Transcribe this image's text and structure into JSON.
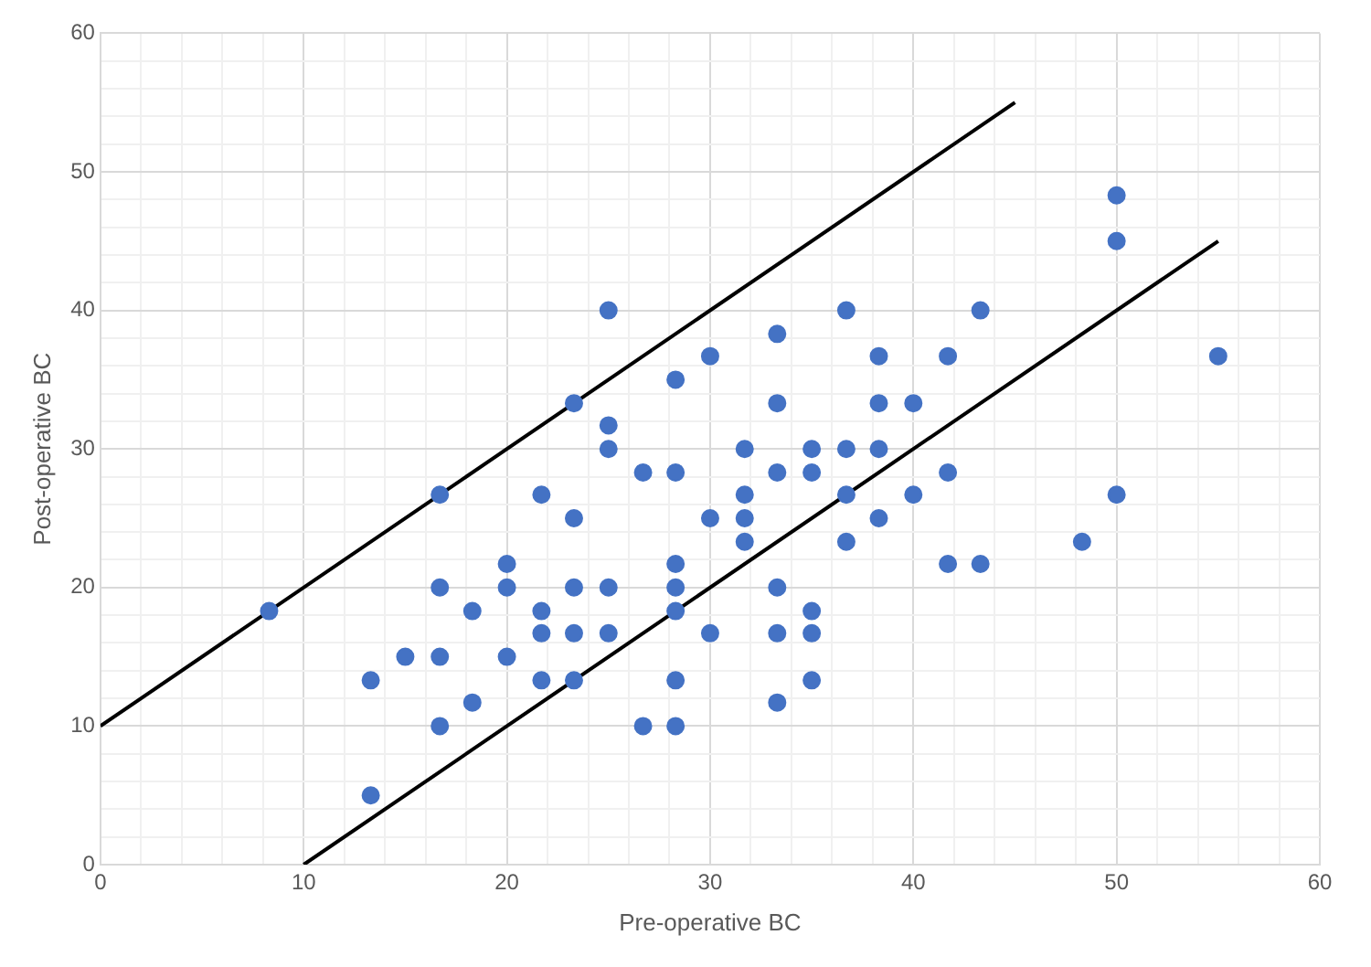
{
  "chart_data": {
    "type": "scatter",
    "xlabel": "Pre-operative BC",
    "ylabel": "Post-operative BC",
    "xlim": [
      0,
      60
    ],
    "ylim": [
      0,
      60
    ],
    "xticks": [
      0,
      {
        "value": 2,
        "label": null
      },
      {
        "value": 4,
        "label": null
      },
      {
        "value": 6,
        "label": null
      },
      {
        "value": 8,
        "label": null
      },
      10,
      {
        "value": 12,
        "label": null
      },
      {
        "value": 14,
        "label": null
      },
      {
        "value": 16,
        "label": null
      },
      {
        "value": 18,
        "label": null
      },
      20,
      {
        "value": 22,
        "label": null
      },
      {
        "value": 24,
        "label": null
      },
      {
        "value": 26,
        "label": null
      },
      {
        "value": 28,
        "label": null
      },
      30,
      {
        "value": 32,
        "label": null
      },
      {
        "value": 34,
        "label": null
      },
      {
        "value": 36,
        "label": null
      },
      {
        "value": 38,
        "label": null
      },
      40,
      {
        "value": 42,
        "label": null
      },
      {
        "value": 44,
        "label": null
      },
      {
        "value": 46,
        "label": null
      },
      {
        "value": 48,
        "label": null
      },
      50,
      {
        "value": 52,
        "label": null
      },
      {
        "value": 54,
        "label": null
      },
      {
        "value": 56,
        "label": null
      },
      {
        "value": 58,
        "label": null
      },
      60
    ],
    "yticks": [
      0,
      {
        "value": 2,
        "label": null
      },
      {
        "value": 4,
        "label": null
      },
      {
        "value": 6,
        "label": null
      },
      {
        "value": 8,
        "label": null
      },
      10,
      {
        "value": 12,
        "label": null
      },
      {
        "value": 14,
        "label": null
      },
      {
        "value": 16,
        "label": null
      },
      {
        "value": 18,
        "label": null
      },
      20,
      {
        "value": 22,
        "label": null
      },
      {
        "value": 24,
        "label": null
      },
      {
        "value": 26,
        "label": null
      },
      {
        "value": 28,
        "label": null
      },
      30,
      {
        "value": 32,
        "label": null
      },
      {
        "value": 34,
        "label": null
      },
      {
        "value": 36,
        "label": null
      },
      {
        "value": 38,
        "label": null
      },
      40,
      {
        "value": 42,
        "label": null
      },
      {
        "value": 44,
        "label": null
      },
      {
        "value": 46,
        "label": null
      },
      {
        "value": 48,
        "label": null
      },
      50,
      {
        "value": 52,
        "label": null
      },
      {
        "value": 54,
        "label": null
      },
      {
        "value": 56,
        "label": null
      },
      {
        "value": 58,
        "label": null
      },
      60
    ],
    "grid": true,
    "legend": false,
    "series": [
      {
        "type": "scatter",
        "color": "#4472c4",
        "marker": "circle",
        "x": [
          8.3,
          13.3,
          13.3,
          15,
          16.7,
          16.7,
          16.7,
          16.7,
          18.3,
          18.3,
          20,
          20,
          20,
          21.7,
          21.7,
          21.7,
          21.7,
          23.3,
          23.3,
          23.3,
          23.3,
          23.3,
          25,
          25,
          25,
          25,
          25,
          26.7,
          26.7,
          28.3,
          28.3,
          28.3,
          28.3,
          28.3,
          28.3,
          28.3,
          30,
          30,
          30,
          31.7,
          31.7,
          31.7,
          31.7,
          33.3,
          33.3,
          33.3,
          33.3,
          33.3,
          33.3,
          35,
          35,
          35,
          35,
          35,
          36.7,
          36.7,
          36.7,
          36.7,
          38.3,
          38.3,
          38.3,
          38.3,
          40,
          40,
          41.7,
          41.7,
          41.7,
          43.3,
          43.3,
          48.3,
          50,
          50,
          50,
          55
        ],
        "values": [
          18.3,
          13.3,
          5,
          15,
          26.7,
          20,
          15,
          10,
          18.3,
          11.7,
          21.7,
          20,
          15,
          26.7,
          18.3,
          16.7,
          13.3,
          33.3,
          25,
          20,
          16.7,
          13.3,
          40,
          31.7,
          30,
          20,
          16.7,
          28.3,
          10,
          35,
          28.3,
          21.7,
          20,
          18.3,
          13.3,
          10,
          36.7,
          25,
          16.7,
          30,
          26.7,
          25,
          23.3,
          38.3,
          33.3,
          28.3,
          20,
          16.7,
          11.7,
          30,
          28.3,
          18.3,
          16.7,
          13.3,
          40,
          30,
          26.7,
          23.3,
          36.7,
          33.3,
          30,
          25,
          33.3,
          26.7,
          36.7,
          28.3,
          21.7,
          40,
          21.7,
          23.3,
          48.3,
          45,
          26.7,
          36.7
        ]
      },
      {
        "type": "line",
        "color": "#000000",
        "marker": "none",
        "line_style": "solid",
        "x": [
          0,
          45
        ],
        "values": [
          10,
          55
        ]
      },
      {
        "type": "line",
        "color": "#000000",
        "marker": "none",
        "line_style": "solid",
        "x": [
          10,
          55
        ],
        "values": [
          0,
          45
        ]
      }
    ]
  }
}
